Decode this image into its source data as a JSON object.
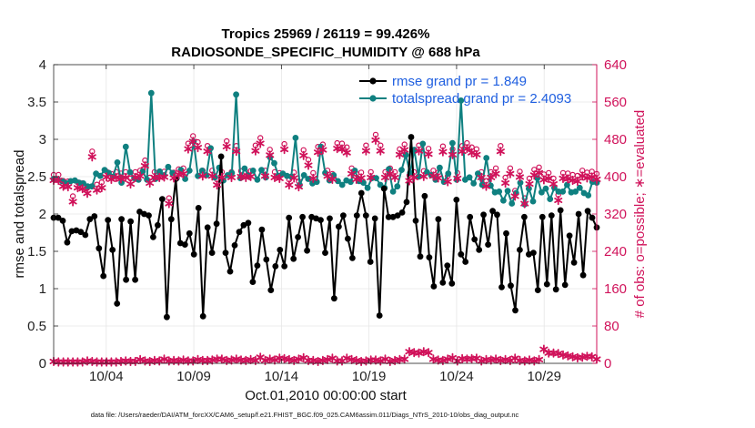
{
  "colors": {
    "rmse": "#000000",
    "spread": "#0f8080",
    "obs": "#d0125a",
    "legendText": "#1f5fe0",
    "grid": "#e6e6e6"
  },
  "chart_data": {
    "type": "line",
    "title": "Tropics 25969 / 26119 = 99.426%",
    "subtitle": "RADIOSONDE_SPECIFIC_HUMIDITY @ 688 hPa",
    "xlabel": "Oct.01,2010 00:00:00 start",
    "ylabel": "rmse and totalspread",
    "y2label": "# of obs: o=possible; ∗=evaluated",
    "footnote": "data file: /Users/raeder/DAI/ATM_forcXX/CAM6_setup/f.e21.FHIST_BGC.f09_025.CAM6assim.011/Diags_NTrS_2010-10/obs_diag_output.nc",
    "xlim": [
      1.0,
      32.0
    ],
    "ylim": [
      0,
      4
    ],
    "y2lim": [
      0,
      640
    ],
    "xticks": [
      4,
      9,
      14,
      19,
      24,
      29
    ],
    "xticklabels": [
      "10/04",
      "10/09",
      "10/14",
      "10/19",
      "10/24",
      "10/29"
    ],
    "yticks": [
      0,
      0.5,
      1,
      1.5,
      2,
      2.5,
      3,
      3.5,
      4
    ],
    "yticklabels": [
      "0",
      "0.5",
      "1",
      "1.5",
      "2",
      "2.5",
      "3",
      "3.5",
      "4"
    ],
    "y2ticks": [
      0,
      80,
      160,
      240,
      320,
      400,
      480,
      560,
      640
    ],
    "y2ticklabels": [
      "0",
      "80",
      "160",
      "240",
      "320",
      "400",
      "480",
      "560",
      "640"
    ],
    "legend_position": "top-right",
    "series": [
      {
        "name": "rmse grand pr = 1.849",
        "values": [
          1.95,
          1.95,
          1.91,
          1.62,
          1.77,
          1.78,
          1.76,
          1.72,
          1.93,
          1.97,
          1.54,
          1.17,
          1.92,
          1.52,
          0.8,
          1.93,
          1.12,
          1.9,
          1.12,
          2.03,
          2.0,
          1.98,
          1.69,
          1.85,
          2.2,
          0.62,
          1.93,
          2.47,
          1.61,
          1.59,
          1.74,
          1.46,
          2.08,
          0.63,
          1.82,
          1.48,
          1.87,
          2.77,
          1.48,
          1.23,
          1.58,
          1.76,
          1.85,
          1.88,
          1.09,
          1.31,
          1.79,
          1.39,
          0.98,
          1.3,
          1.52,
          1.3,
          1.95,
          1.4,
          1.69,
          1.96,
          1.51,
          1.96,
          1.94,
          1.92,
          1.48,
          1.94,
          0.87,
          1.83,
          1.98,
          1.67,
          1.41,
          1.98,
          2.28,
          1.98,
          1.36,
          1.94,
          0.64,
          2.34,
          1.96,
          1.96,
          1.98,
          2.02,
          2.16,
          3.03,
          1.91,
          1.43,
          2.24,
          1.42,
          1.03,
          1.93,
          1.08,
          1.31,
          1.07,
          2.19,
          1.46,
          1.36,
          1.96,
          1.66,
          1.52,
          1.99,
          1.59,
          2.04,
          1.99,
          1.02,
          1.74,
          1.04,
          0.71,
          1.52,
          1.96,
          1.46,
          1.48,
          0.98,
          1.96,
          1.06,
          1.98,
          0.99,
          2.05,
          1.05,
          1.71,
          1.35,
          2.0,
          1.18,
          2.04,
          1.95,
          1.82
        ]
      },
      {
        "name": "totalspread grand pr = 2.4093",
        "values": [
          2.47,
          2.46,
          2.44,
          2.41,
          2.44,
          2.45,
          2.42,
          2.41,
          2.37,
          2.37,
          2.54,
          2.51,
          2.59,
          2.55,
          2.5,
          2.69,
          2.42,
          2.9,
          2.56,
          2.48,
          2.46,
          2.57,
          2.46,
          3.62,
          2.47,
          2.57,
          2.52,
          2.63,
          2.55,
          2.48,
          2.59,
          2.47,
          2.58,
          2.97,
          2.51,
          2.58,
          2.52,
          2.88,
          2.49,
          2.62,
          2.45,
          2.52,
          2.55,
          3.6,
          2.48,
          2.61,
          2.51,
          2.58,
          2.46,
          2.59,
          2.49,
          2.76,
          2.68,
          2.51,
          2.54,
          2.51,
          2.5,
          3.02,
          2.39,
          2.52,
          2.47,
          2.41,
          2.43,
          2.9,
          2.55,
          2.45,
          2.52,
          2.44,
          2.39,
          2.45,
          2.43,
          2.58,
          2.44,
          2.42,
          2.35,
          2.48,
          2.48,
          2.39,
          2.35,
          2.6,
          2.3,
          2.37,
          2.59,
          2.79,
          2.55,
          2.86,
          2.5,
          2.94,
          2.56,
          2.52,
          2.46,
          2.62,
          2.43,
          2.54,
          2.95,
          2.46,
          3.52,
          2.46,
          2.49,
          2.41,
          2.54,
          2.39,
          2.75,
          2.38,
          2.29,
          2.3,
          2.18,
          2.31,
          2.14,
          2.28,
          2.42,
          2.13,
          2.34,
          2.17,
          2.48,
          2.29,
          2.34,
          2.2,
          2.35,
          2.3,
          2.3,
          2.39,
          2.29,
          2.3,
          2.35,
          2.28,
          2.25,
          2.43,
          2.42
        ]
      },
      {
        "name": "# of obs possible",
        "values": [
          404,
          404,
          391,
          390,
          358,
          388,
          386,
          376,
          454,
          383,
          388,
          411,
          406,
          410,
          407,
          410,
          396,
          410,
          413,
          435,
          398,
          410,
          410,
          411,
          354,
          409,
          416,
          418,
          471,
          487,
          474,
          413,
          466,
          413,
          394,
          410,
          476,
          410,
          466,
          412,
          410,
          412,
          467,
          483,
          413,
          458,
          410,
          408,
          470,
          394,
          409,
          390,
          457,
          436,
          408,
          464,
          469,
          413,
          406,
          472,
          471,
          463,
          418,
          406,
          409,
          467,
          410,
          490,
          467,
          410,
          418,
          410,
          459,
          469,
          403,
          410,
          467,
          412,
          460,
          413,
          409,
          465,
          401,
          459,
          408,
          466,
          472,
          463,
          459,
          410,
          391,
          410,
          418,
          466,
          398,
          418,
          370,
          411,
          354,
          396,
          415,
          420,
          405,
          408,
          396,
          361,
          408,
          407,
          404,
          402,
          413,
          409,
          411,
          406
        ]
      },
      {
        "name": "# of obs evaluated",
        "values": [
          4,
          3,
          3,
          3,
          3,
          3,
          3,
          5,
          4,
          3,
          3,
          3,
          3,
          3,
          4,
          5,
          4,
          4,
          8,
          5,
          4,
          6,
          5,
          9,
          5,
          6,
          5,
          7,
          5,
          5,
          8,
          6,
          6,
          7,
          9,
          9,
          6,
          7,
          9,
          7,
          6,
          8,
          6,
          13,
          6,
          9,
          7,
          11,
          10,
          8,
          6,
          9,
          12,
          6,
          6,
          4,
          6,
          8,
          11,
          5,
          5,
          11,
          8,
          6,
          4,
          5,
          7,
          7,
          5,
          9,
          4,
          6,
          8,
          9,
          25,
          23,
          22,
          25,
          23,
          9,
          7,
          6,
          9,
          12,
          5,
          10,
          9,
          10,
          11,
          5,
          8,
          7,
          9,
          6,
          8,
          6,
          11,
          6,
          5,
          7,
          5,
          8,
          30,
          22,
          22,
          21,
          18,
          16,
          14,
          12,
          13,
          15,
          14,
          9
        ]
      }
    ]
  }
}
